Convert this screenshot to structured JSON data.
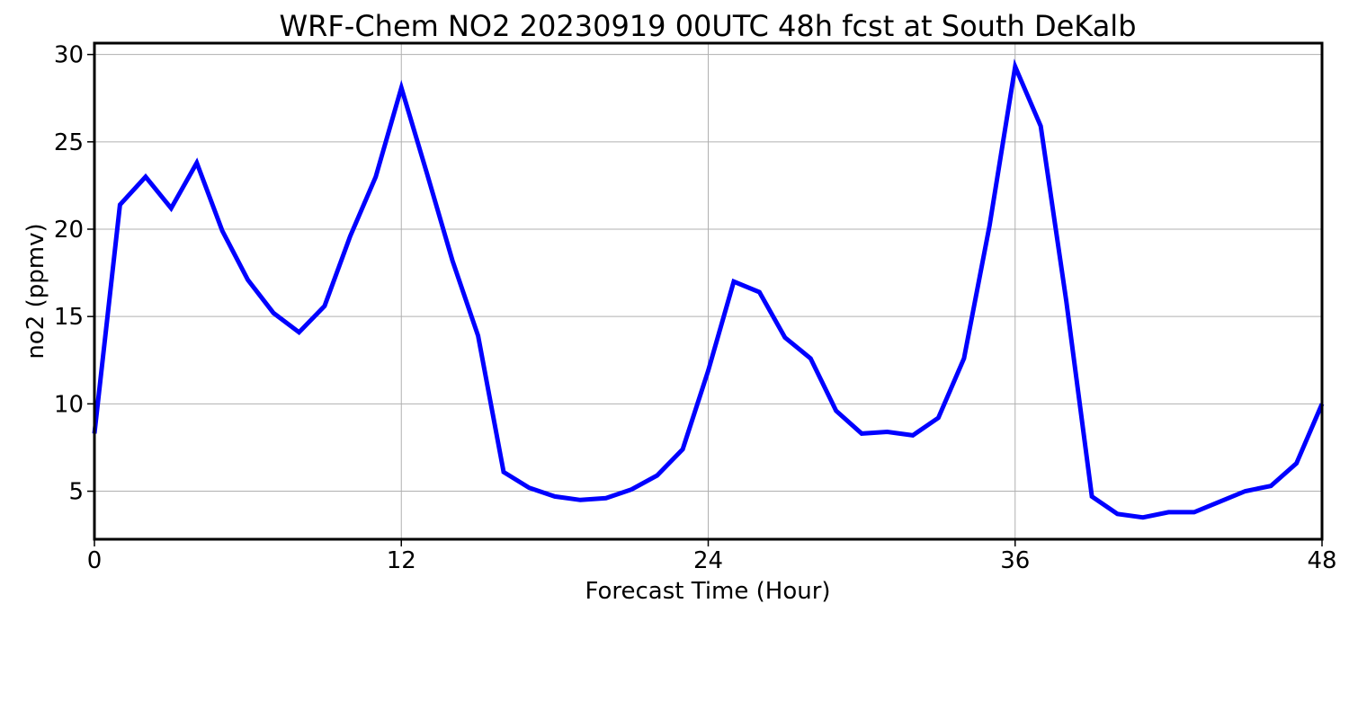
{
  "chart_data": {
    "type": "line",
    "title": "WRF-Chem NO2  20230919 00UTC 48h fcst at South DeKalb",
    "xlabel": "Forecast Time (Hour)",
    "ylabel": "no2  (ppmv)",
    "xlim": [
      0,
      48
    ],
    "ylim": [
      2.25,
      30.65
    ],
    "xticks": [
      0,
      12,
      24,
      36,
      48
    ],
    "xtick_labels": [
      "0",
      "12",
      "24",
      "36",
      "48"
    ],
    "yticks": [
      5,
      10,
      15,
      20,
      25,
      30
    ],
    "ytick_labels": [
      "5",
      "10",
      "15",
      "20",
      "25",
      "30"
    ],
    "grid": true,
    "x": [
      0,
      1,
      2,
      3,
      4,
      5,
      6,
      7,
      8,
      9,
      10,
      11,
      12,
      13,
      14,
      15,
      16,
      17,
      18,
      19,
      20,
      21,
      22,
      23,
      24,
      25,
      26,
      27,
      28,
      29,
      30,
      31,
      32,
      33,
      34,
      35,
      36,
      37,
      38,
      39,
      40,
      41,
      42,
      43,
      44,
      45,
      46,
      47,
      48
    ],
    "series": [
      {
        "color": "#0000ff",
        "values": [
          8.3,
          21.4,
          23.0,
          21.2,
          23.8,
          19.9,
          17.1,
          15.2,
          14.1,
          15.6,
          19.6,
          23.0,
          28.1,
          23.2,
          18.2,
          13.9,
          6.1,
          5.2,
          4.7,
          4.5,
          4.6,
          5.1,
          5.9,
          7.4,
          11.9,
          17.0,
          16.4,
          13.8,
          12.6,
          9.6,
          8.3,
          8.4,
          8.2,
          9.2,
          12.6,
          20.2,
          29.3,
          25.9,
          15.9,
          4.7,
          3.7,
          3.5,
          3.8,
          3.8,
          4.4,
          5.0,
          5.3,
          6.6,
          10.0
        ]
      }
    ]
  }
}
